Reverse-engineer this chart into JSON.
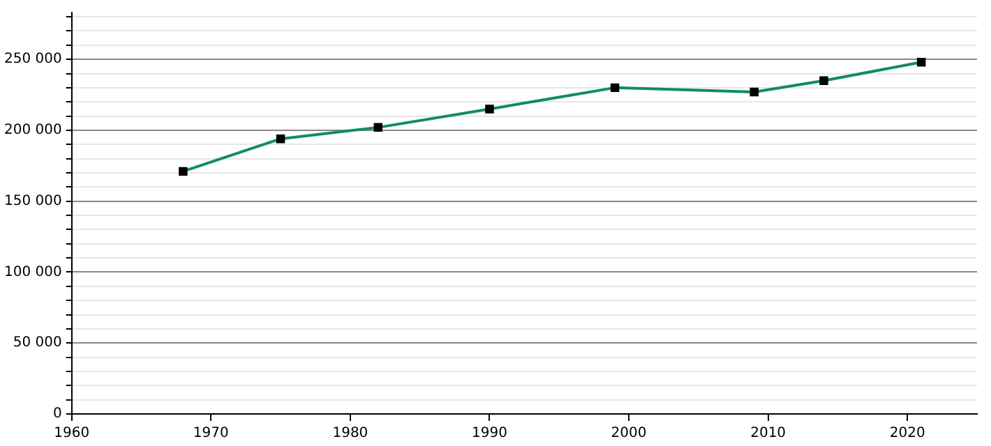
{
  "chart_data": {
    "type": "line",
    "x": [
      1968,
      1975,
      1982,
      1990,
      1999,
      2009,
      2014,
      2021
    ],
    "series": [
      {
        "color": "#0f8c68",
        "values": [
          171000,
          194000,
          202000,
          215000,
          230000,
          227000,
          235000,
          248000
        ]
      }
    ],
    "xlim": [
      1960,
      2025
    ],
    "xticks": [
      1960,
      1970,
      1980,
      1990,
      2000,
      2010,
      2020
    ],
    "ylim": [
      0,
      283000
    ],
    "yticks": [
      {
        "value": 0,
        "label": "0"
      },
      {
        "value": 10000,
        "label": null
      },
      {
        "value": 20000,
        "label": null
      },
      {
        "value": 30000,
        "label": null
      },
      {
        "value": 40000,
        "label": null
      },
      {
        "value": 50000,
        "label": "50 000"
      },
      {
        "value": 60000,
        "label": null
      },
      {
        "value": 70000,
        "label": null
      },
      {
        "value": 80000,
        "label": null
      },
      {
        "value": 90000,
        "label": null
      },
      {
        "value": 100000,
        "label": "100 000"
      },
      {
        "value": 110000,
        "label": null
      },
      {
        "value": 120000,
        "label": null
      },
      {
        "value": 130000,
        "label": null
      },
      {
        "value": 140000,
        "label": null
      },
      {
        "value": 150000,
        "label": "150 000"
      },
      {
        "value": 160000,
        "label": null
      },
      {
        "value": 170000,
        "label": null
      },
      {
        "value": 180000,
        "label": null
      },
      {
        "value": 190000,
        "label": null
      },
      {
        "value": 200000,
        "label": "200 000"
      },
      {
        "value": 210000,
        "label": null
      },
      {
        "value": 220000,
        "label": null
      },
      {
        "value": 230000,
        "label": null
      },
      {
        "value": 240000,
        "label": null
      },
      {
        "value": 250000,
        "label": "250 000"
      },
      {
        "value": 260000,
        "label": null
      },
      {
        "value": 270000,
        "label": null
      },
      {
        "value": 280000,
        "label": null
      }
    ],
    "grid": "y",
    "marker": "square",
    "line_style": "solid",
    "legend": false
  }
}
